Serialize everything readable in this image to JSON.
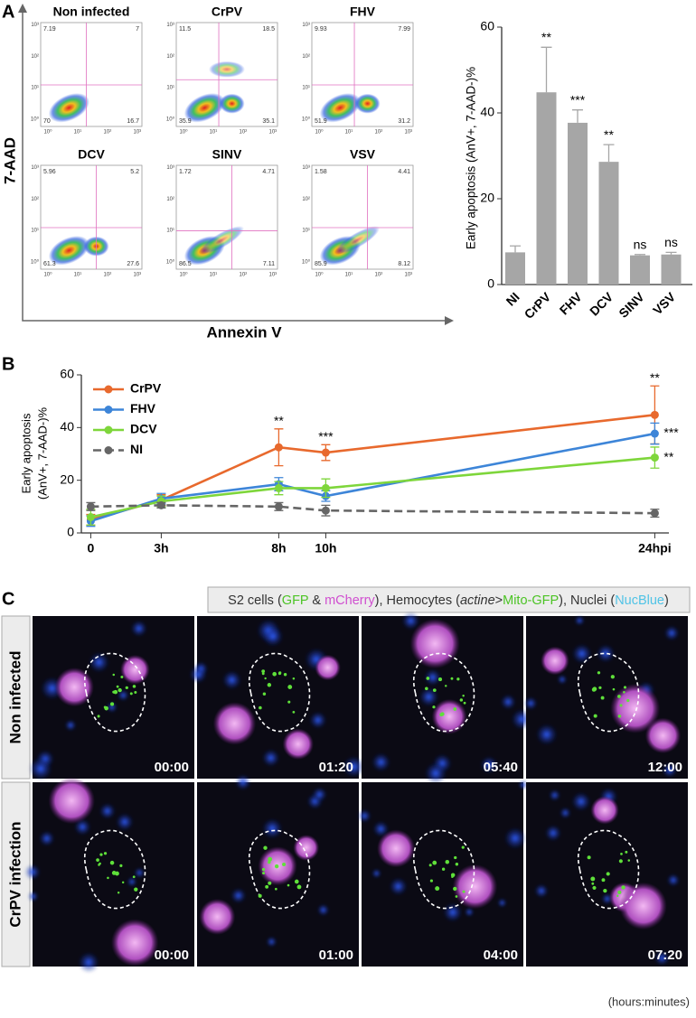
{
  "panel_labels": [
    "A",
    "B",
    "C"
  ],
  "flow_cytometry": {
    "y_label": "7-AAD",
    "x_label": "Annexin V",
    "axis_ticks": [
      "10⁰",
      "10¹",
      "10²",
      "10³"
    ],
    "plots": [
      {
        "title": "Non infected",
        "quadrants": [
          7.19,
          7,
          70,
          16.7
        ]
      },
      {
        "title": "CrPV",
        "quadrants": [
          11.5,
          18.5,
          35.9,
          35.1
        ]
      },
      {
        "title": "FHV",
        "quadrants": [
          9.93,
          7.99,
          51.9,
          31.2
        ]
      },
      {
        "title": "DCV",
        "quadrants": [
          5.96,
          5.2,
          61.3,
          27.6
        ]
      },
      {
        "title": "SINV",
        "quadrants": [
          1.72,
          4.71,
          86.5,
          7.11
        ]
      },
      {
        "title": "VSV",
        "quadrants": [
          1.58,
          4.41,
          85.9,
          8.12
        ]
      }
    ]
  },
  "chart_data": [
    {
      "type": "bar",
      "y_label": "Early apoptosis (AnV+, 7-AAD-)%",
      "categories": [
        "NI",
        "CrPV",
        "FHV",
        "DCV",
        "SINV",
        "VSV"
      ],
      "values": [
        7.5,
        44.8,
        37.7,
        28.6,
        6.8,
        7
      ],
      "errors": [
        1.5,
        10.5,
        3,
        4,
        0.2,
        0.5
      ],
      "significance": [
        null,
        "**",
        "***",
        "**",
        "ns",
        "ns"
      ],
      "color": "#a6a6a6",
      "ylim": [
        0,
        60
      ],
      "yticks": [
        0,
        20,
        40,
        60
      ]
    },
    {
      "type": "line",
      "y_label": [
        "Early apoptosis",
        "(AnV+, 7-AAD-)%"
      ],
      "x": [
        0,
        3,
        8,
        10,
        24
      ],
      "xlim": [
        -0.4,
        24.6
      ],
      "xticks": [
        0,
        {
          "value": 3,
          "label": "3h"
        },
        {
          "value": 8,
          "label": "8h"
        },
        {
          "value": 10,
          "label": "10h"
        },
        {
          "value": 24,
          "label": "24hpi"
        }
      ],
      "ylim": [
        0,
        60
      ],
      "yticks": [
        0,
        20,
        40,
        60
      ],
      "series": [
        {
          "name": "CrPV",
          "color": "#e8692d",
          "values": [
            5,
            12.5,
            32.5,
            30.5,
            44.8
          ],
          "errors": [
            2,
            2,
            7,
            3,
            11
          ],
          "significance": [
            null,
            null,
            "**",
            "***",
            "**"
          ]
        },
        {
          "name": "FHV",
          "color": "#3d85d8",
          "values": [
            4.5,
            13,
            18.5,
            14,
            37.7
          ],
          "errors": [
            2,
            2,
            2.5,
            2,
            4
          ],
          "significance": [
            null,
            null,
            null,
            null,
            "***"
          ]
        },
        {
          "name": "DCV",
          "color": "#7ed63b",
          "values": [
            6,
            12,
            17,
            17,
            28.6
          ],
          "errors": [
            3,
            2,
            2.5,
            3.5,
            4
          ],
          "significance": [
            null,
            null,
            null,
            null,
            "**"
          ]
        },
        {
          "name": "NI",
          "color": "#666666",
          "dashed": true,
          "values": [
            10,
            10.5,
            10,
            8.5,
            7.5
          ],
          "errors": [
            1.5,
            1,
            1.5,
            2,
            1.5
          ]
        }
      ]
    }
  ],
  "microscopy": {
    "header": [
      {
        "text": "S2 cells (",
        "color": "#333333"
      },
      {
        "text": "GFP",
        "color": "#4cc425"
      },
      {
        "text": " & ",
        "color": "#333333"
      },
      {
        "text": "mCherry",
        "color": "#d04fd0"
      },
      {
        "text": "), Hemocytes (",
        "color": "#333333"
      },
      {
        "text": "actine",
        "color": "#333333",
        "italic": true
      },
      {
        "text": ">",
        "color": "#333333"
      },
      {
        "text": "Mito-GFP",
        "color": "#4cc425"
      },
      {
        "text": "), Nuclei (",
        "color": "#333333"
      },
      {
        "text": "NucBlue",
        "color": "#4fc3e6"
      },
      {
        "text": ")",
        "color": "#333333"
      }
    ],
    "rows": [
      {
        "label": "Non infected",
        "times": [
          "00:00",
          "01:20",
          "05:40",
          "12:00"
        ]
      },
      {
        "label": "CrPV infection",
        "times": [
          "00:00",
          "01:00",
          "04:00",
          "07:20"
        ]
      }
    ],
    "footnote": "(hours:minutes)"
  }
}
